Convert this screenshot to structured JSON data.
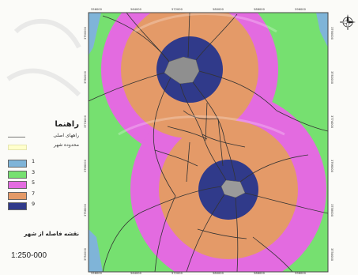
{
  "legend": {
    "title": "راهنما",
    "road_label": "راههای اصلی",
    "boundary_label": "محدوده شهر",
    "classes": [
      {
        "label": "1",
        "color": "#7fb4d8"
      },
      {
        "label": "3",
        "color": "#76e070"
      },
      {
        "label": "5",
        "color": "#e36be0"
      },
      {
        "label": "7",
        "color": "#e49a68"
      },
      {
        "label": "9",
        "color": "#303a8a"
      }
    ]
  },
  "map_title": "نقشه فاصله از شهر",
  "scale": "1:250-000",
  "grid_labels": {
    "top": [
      "556000",
      "564000",
      "572000",
      "580000",
      "588000",
      "596000"
    ],
    "bottom": [
      "556000",
      "564000",
      "572000",
      "580000",
      "588000",
      "596000"
    ],
    "left": [
      "3790000",
      "3782000",
      "3774000",
      "3766000",
      "3758000",
      "3750000"
    ],
    "right": [
      "3790000",
      "3782000",
      "3774000",
      "3766000",
      "3758000",
      "3750000"
    ]
  },
  "colors": {
    "class1": "#7fb4d8",
    "class3": "#76e070",
    "class5": "#e36be0",
    "class7": "#e49a68",
    "class9": "#303a8a",
    "city": "#8f8f8f",
    "roads": "#333333"
  }
}
